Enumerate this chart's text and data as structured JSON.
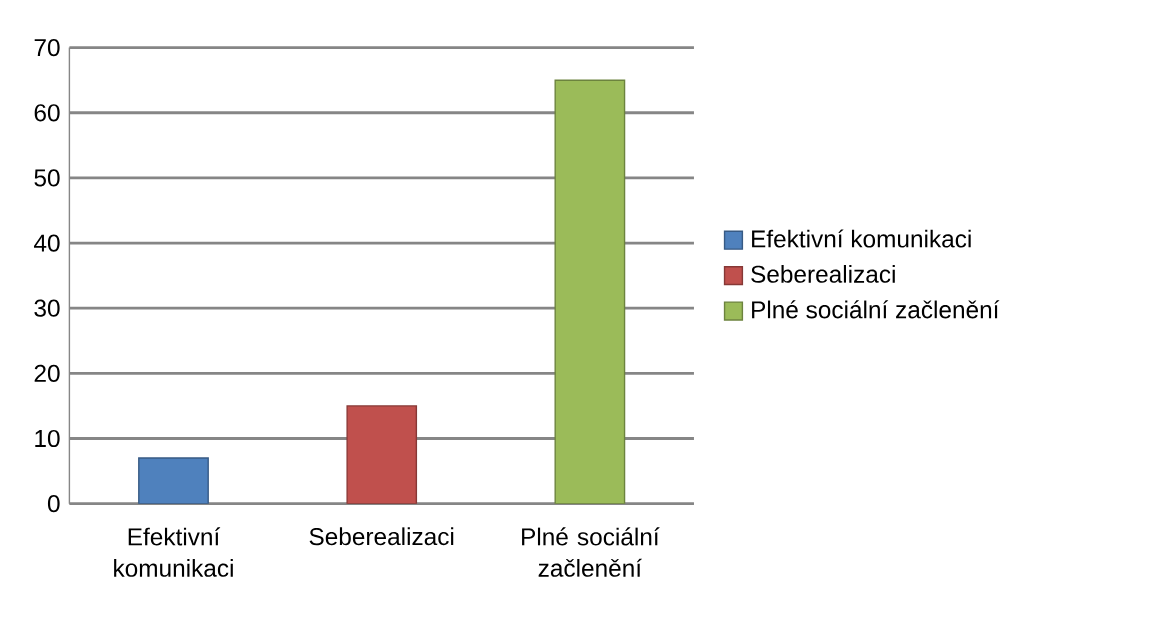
{
  "chart_data": {
    "type": "bar",
    "categories": [
      "Efektivní komunikaci",
      "Seberealizaci",
      "Plné sociální začlenění"
    ],
    "series": [
      {
        "name": "Efektivní komunikaci",
        "color": "#4f81bd",
        "values": [
          7,
          null,
          null
        ]
      },
      {
        "name": "Seberealizaci",
        "color": "#c0504d",
        "values": [
          null,
          15,
          null
        ]
      },
      {
        "name": "Plné sociální začlenění",
        "color": "#9bbb59",
        "values": [
          null,
          null,
          65
        ]
      }
    ],
    "ylim": [
      0,
      70
    ],
    "yticks": [
      0,
      10,
      20,
      30,
      40,
      50,
      60,
      70
    ],
    "grid": "y",
    "legend": "right"
  }
}
